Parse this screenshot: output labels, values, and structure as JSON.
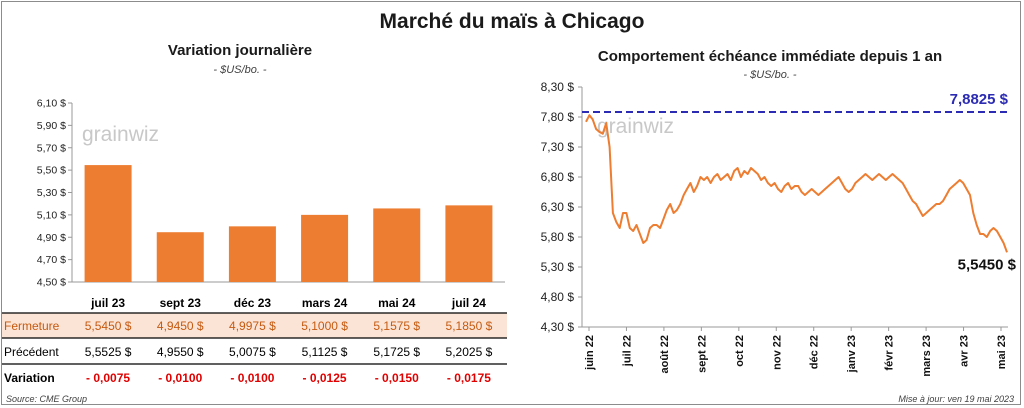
{
  "title": "Marché du maïs à Chicago",
  "left_chart": {
    "title": "Variation  journalière",
    "unit": "- $US/bo. -",
    "watermark": "grainwiz",
    "chart_data": {
      "type": "bar",
      "categories": [
        "juil 23",
        "sept 23",
        "déc 23",
        "mars 24",
        "mai 24",
        "juil 24"
      ],
      "values": [
        5.545,
        4.945,
        4.9975,
        5.1,
        5.1575,
        5.185
      ],
      "ylim": [
        4.5,
        6.1
      ],
      "yticks": [
        "4,50 $",
        "4,70 $",
        "4,90 $",
        "5,10 $",
        "5,30 $",
        "5,50 $",
        "5,70 $",
        "5,90 $",
        "6,10 $"
      ],
      "color": "#ed7d31"
    }
  },
  "table": {
    "rows": [
      {
        "label": "Fermeture",
        "values": [
          "5,5450  $",
          "4,9450  $",
          "4,9975  $",
          "5,1000  $",
          "5,1575  $",
          "5,1850  $"
        ]
      },
      {
        "label": "Précédent",
        "values": [
          "5,5525  $",
          "4,9550  $",
          "5,0075  $",
          "5,1125  $",
          "5,1725  $",
          "5,2025  $"
        ]
      },
      {
        "label": "Variation",
        "values": [
          "- 0,0075",
          "- 0,0100",
          "- 0,0100",
          "- 0,0125",
          "- 0,0150",
          "- 0,0175"
        ]
      }
    ]
  },
  "right_chart": {
    "title": "Comportement  échéance immédiate depuis 1 an",
    "unit": "- $US/bo. -",
    "watermark": "grainwiz",
    "chart_data": {
      "type": "line",
      "ylim": [
        4.3,
        8.3
      ],
      "yticks": [
        "4,30 $",
        "4,80 $",
        "5,30 $",
        "5,80 $",
        "6,30 $",
        "6,80 $",
        "7,30 $",
        "7,80 $",
        "8,30 $"
      ],
      "x_ticks": [
        "juin 22",
        "juil 22",
        "août 22",
        "sept 22",
        "oct 22",
        "nov 22",
        "déc 22",
        "janv 23",
        "févr 23",
        "mars 23",
        "avr 23",
        "mai 23"
      ],
      "reference_value": 7.8825,
      "reference_label": "7,8825 $",
      "last_label": "5,5450 $",
      "values": [
        7.72,
        7.83,
        7.76,
        7.6,
        7.55,
        7.52,
        7.7,
        7.3,
        6.2,
        6.05,
        5.95,
        6.2,
        6.2,
        5.95,
        5.9,
        6.0,
        5.85,
        5.7,
        5.75,
        5.95,
        6.0,
        6.0,
        5.95,
        6.1,
        6.25,
        6.35,
        6.2,
        6.25,
        6.35,
        6.5,
        6.6,
        6.7,
        6.55,
        6.65,
        6.8,
        6.75,
        6.8,
        6.7,
        6.8,
        6.85,
        6.75,
        6.8,
        6.85,
        6.75,
        6.9,
        6.95,
        6.8,
        6.9,
        6.85,
        6.95,
        6.9,
        6.85,
        6.75,
        6.8,
        6.7,
        6.65,
        6.7,
        6.6,
        6.55,
        6.65,
        6.7,
        6.6,
        6.65,
        6.65,
        6.55,
        6.5,
        6.55,
        6.6,
        6.55,
        6.5,
        6.55,
        6.6,
        6.65,
        6.7,
        6.75,
        6.8,
        6.7,
        6.6,
        6.55,
        6.6,
        6.7,
        6.75,
        6.8,
        6.85,
        6.8,
        6.75,
        6.8,
        6.85,
        6.8,
        6.75,
        6.8,
        6.85,
        6.8,
        6.75,
        6.7,
        6.6,
        6.5,
        6.4,
        6.35,
        6.25,
        6.15,
        6.2,
        6.25,
        6.3,
        6.35,
        6.35,
        6.4,
        6.5,
        6.6,
        6.65,
        6.7,
        6.75,
        6.7,
        6.6,
        6.5,
        6.2,
        6.0,
        5.85,
        5.85,
        5.8,
        5.9,
        5.95,
        5.9,
        5.8,
        5.7,
        5.545
      ],
      "color": "#ed7d31",
      "reference_color": "#2b2bb3"
    }
  },
  "footer": {
    "source": "Source: CME Group",
    "updated": "Mise à jour: ven 19 mai 2023"
  }
}
